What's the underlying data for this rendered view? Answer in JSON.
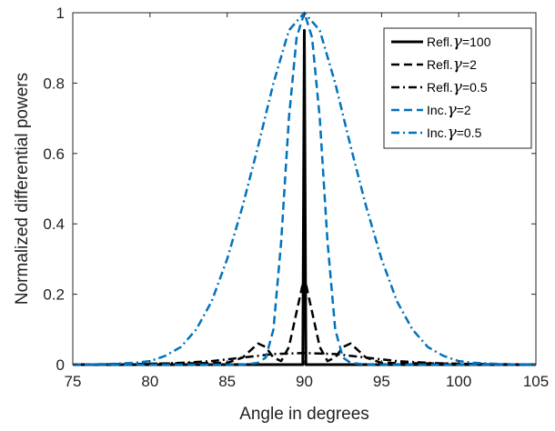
{
  "chart_data": {
    "type": "line",
    "title": "",
    "xlabel": "Angle in degrees",
    "ylabel": "Normalized differential powers",
    "xlim": [
      75,
      105
    ],
    "ylim": [
      0,
      1
    ],
    "xticks": [
      75,
      80,
      85,
      90,
      95,
      100,
      105
    ],
    "yticks": [
      0,
      0.2,
      0.4,
      0.6,
      0.8,
      1
    ],
    "xtick_labels": [
      "75",
      "80",
      "85",
      "90",
      "95",
      "100",
      "105"
    ],
    "ytick_labels": [
      "0",
      "0.2",
      "0.4",
      "0.6",
      "0.8",
      "1"
    ],
    "grid": false,
    "legend_position": "top-right",
    "series": [
      {
        "name": "Refl.γ=100",
        "legend_prefix": "Refl.",
        "legend_suffix": "=100",
        "color": "#000000",
        "style": "solid",
        "x": [
          75,
          89.9,
          90,
          90.1,
          105
        ],
        "y": [
          0,
          0,
          0.95,
          0,
          0
        ]
      },
      {
        "name": "Refl.γ=2",
        "legend_prefix": "Refl.",
        "legend_suffix": "=2",
        "color": "#000000",
        "style": "dashed",
        "x": [
          75,
          85,
          86,
          86.5,
          87,
          87.5,
          88,
          88.5,
          89,
          89.5,
          90,
          90.5,
          91,
          91.5,
          92,
          92.5,
          93,
          93.5,
          94,
          95,
          105
        ],
        "y": [
          0,
          0.005,
          0.02,
          0.04,
          0.06,
          0.05,
          0.02,
          0.01,
          0.05,
          0.15,
          0.25,
          0.15,
          0.05,
          0.01,
          0.02,
          0.05,
          0.06,
          0.04,
          0.02,
          0.005,
          0
        ]
      },
      {
        "name": "Refl.γ=0.5",
        "legend_prefix": "Refl.",
        "legend_suffix": "=0.5",
        "color": "#000000",
        "style": "dashdot",
        "x": [
          75,
          78,
          80,
          82,
          84,
          86,
          88,
          90,
          92,
          94,
          96,
          98,
          100,
          102,
          105
        ],
        "y": [
          0,
          0.001,
          0.002,
          0.005,
          0.01,
          0.02,
          0.03,
          0.033,
          0.03,
          0.02,
          0.01,
          0.005,
          0.002,
          0.001,
          0
        ]
      },
      {
        "name": "Inc.γ=2",
        "legend_prefix": "Inc.",
        "legend_suffix": "=2",
        "color": "#0072BD",
        "style": "dashed",
        "x": [
          75,
          86,
          87,
          87.5,
          88,
          88.5,
          89,
          89.5,
          90,
          90.5,
          91,
          91.5,
          92,
          92.5,
          93,
          94,
          105
        ],
        "y": [
          0,
          0,
          0.005,
          0.02,
          0.1,
          0.35,
          0.7,
          0.93,
          1,
          0.93,
          0.7,
          0.35,
          0.1,
          0.02,
          0.005,
          0,
          0
        ]
      },
      {
        "name": "Inc.γ=0.5",
        "legend_prefix": "Inc.",
        "legend_suffix": "=0.5",
        "color": "#0072BD",
        "style": "dashdot",
        "x": [
          75,
          77,
          79,
          80,
          81,
          82,
          83,
          84,
          85,
          86,
          87,
          88,
          89,
          90,
          91,
          92,
          93,
          94,
          95,
          96,
          97,
          98,
          99,
          100,
          101,
          103,
          105
        ],
        "y": [
          0,
          0.001,
          0.005,
          0.01,
          0.025,
          0.05,
          0.1,
          0.18,
          0.3,
          0.45,
          0.62,
          0.8,
          0.95,
          1,
          0.95,
          0.8,
          0.62,
          0.45,
          0.3,
          0.18,
          0.1,
          0.05,
          0.025,
          0.01,
          0.005,
          0.001,
          0
        ]
      }
    ]
  }
}
